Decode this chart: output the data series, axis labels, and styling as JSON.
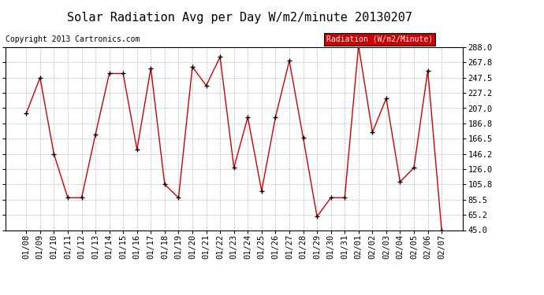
{
  "title": "Solar Radiation Avg per Day W/m2/minute 20130207",
  "copyright": "Copyright 2013 Cartronics.com",
  "legend_label": "Radiation (W/m2/Minute)",
  "legend_bg": "#cc0000",
  "legend_fg": "#ffffff",
  "dates": [
    "01/08",
    "01/09",
    "01/10",
    "01/11",
    "01/12",
    "01/13",
    "01/14",
    "01/15",
    "01/16",
    "01/17",
    "01/18",
    "01/19",
    "01/20",
    "01/21",
    "01/22",
    "01/23",
    "01/24",
    "01/25",
    "01/26",
    "01/27",
    "01/28",
    "01/29",
    "01/30",
    "01/31",
    "02/01",
    "02/02",
    "02/03",
    "02/04",
    "02/05",
    "02/06",
    "02/07"
  ],
  "values": [
    200.0,
    247.5,
    146.2,
    88.0,
    88.0,
    172.0,
    253.0,
    253.0,
    152.0,
    260.0,
    105.8,
    88.0,
    262.0,
    237.0,
    275.0,
    128.0,
    195.0,
    97.0,
    195.0,
    270.0,
    168.0,
    63.0,
    88.0,
    88.0,
    290.0,
    175.0,
    220.0,
    109.0,
    128.0,
    257.0,
    45.0
  ],
  "line_color": "#cc0000",
  "marker_color": "#000000",
  "bg_color": "#ffffff",
  "plot_bg_color": "#ffffff",
  "grid_color": "#bbbbbb",
  "ylim": [
    45.0,
    288.0
  ],
  "yticks": [
    45.0,
    65.2,
    85.5,
    105.8,
    126.0,
    146.2,
    166.5,
    186.8,
    207.0,
    227.2,
    247.5,
    267.8,
    288.0
  ],
  "title_fontsize": 11,
  "copyright_fontsize": 7,
  "tick_fontsize": 7.5,
  "legend_fontsize": 7
}
